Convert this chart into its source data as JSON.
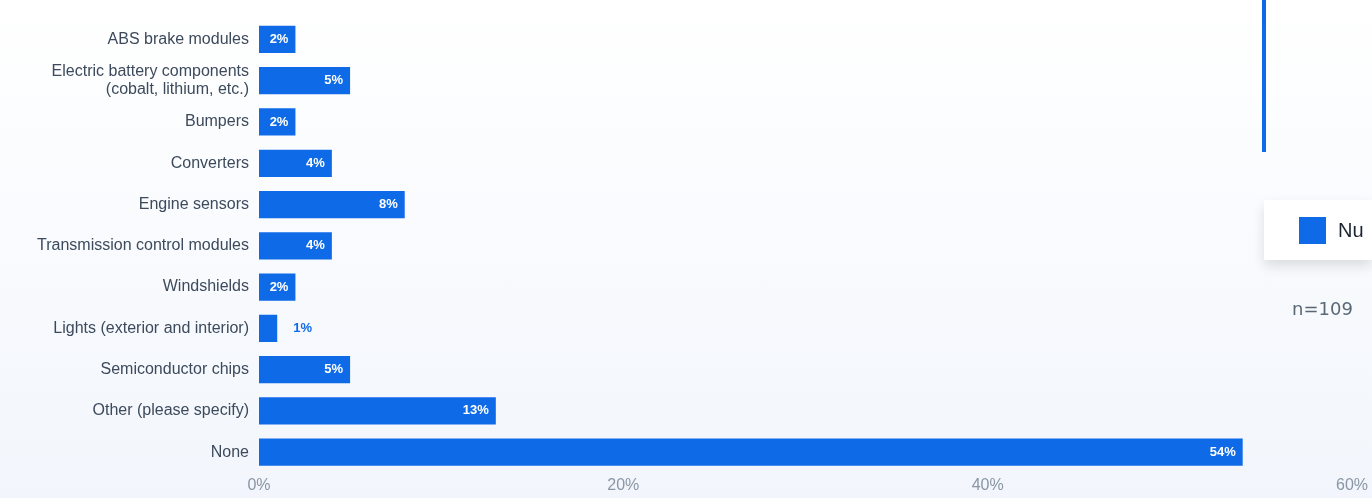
{
  "chart_data": {
    "type": "bar",
    "orientation": "horizontal",
    "categories": [
      "ABS brake modules",
      "Electric battery components\n(cobalt, lithium, etc.)",
      "Bumpers",
      "Converters",
      "Engine sensors",
      "Transmission control modules",
      "Windshields",
      "Lights (exterior and interior)",
      "Semiconductor chips",
      "Other (please specify)",
      "None"
    ],
    "series": [
      {
        "name": "Nu",
        "color": "#0f6ae8",
        "values": [
          2,
          5,
          2,
          4,
          8,
          4,
          2,
          1,
          5,
          13,
          54
        ]
      }
    ],
    "value_labels": [
      "2%",
      "5%",
      "2%",
      "4%",
      "8%",
      "4%",
      "2%",
      "1%",
      "5%",
      "13%",
      "54%"
    ],
    "xlim": [
      0,
      60
    ],
    "xticks": [
      {
        "value": 0,
        "label": "0%"
      },
      {
        "value": 20,
        "label": "20%"
      },
      {
        "value": 40,
        "label": "40%"
      },
      {
        "value": 60,
        "label": "60%"
      }
    ],
    "grid": false,
    "legend": "right",
    "annotations": [
      "n=109"
    ]
  }
}
